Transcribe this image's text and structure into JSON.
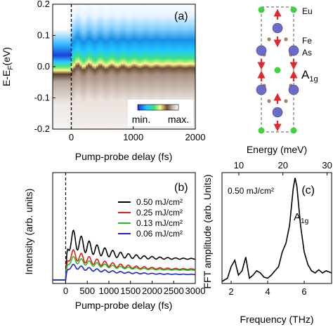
{
  "figure": {
    "panels": [
      {
        "id": "a",
        "label": "(a)",
        "type": "heatmap",
        "ylabel_parts": [
          "E-E",
          "F",
          "(eV)"
        ],
        "xlabel": "Pump-probe delay (fs)",
        "xlim": [
          -300,
          2000
        ],
        "ylim": [
          -0.2,
          0.2
        ],
        "xticks": [
          0,
          1000,
          2000
        ],
        "yticks": [
          0.2,
          0.1,
          0.0,
          -0.1,
          -0.2
        ],
        "ytick_labels": [
          "0.2",
          "0.1",
          "0.0",
          "-0.1",
          "-0.2"
        ],
        "colorbar": {
          "min_label": "min.",
          "max_label": "max.",
          "colors": [
            "#1a30d6",
            "#21c9ff",
            "#3fe07f",
            "#fff48a",
            "#6b4d3b",
            "#ffffff"
          ]
        },
        "dashed_line_x": 0
      },
      {
        "id": "b",
        "label": "(b)",
        "type": "line",
        "ylabel": "Intensity (arb. units)",
        "xlabel": "Pump-probe delay (fs)",
        "xlim": [
          -300,
          3000
        ],
        "xticks": [
          0,
          500,
          1000,
          1500,
          2000,
          2500,
          3000
        ],
        "unit": "mJ/cm²",
        "dashed_line_x": 0
      },
      {
        "id": "c",
        "label": "(c)",
        "type": "line",
        "ylabel": "FFT amplitude (arb. Units)",
        "xlabel": "Frequency (THz)",
        "top_xlabel": "Energy (meV)",
        "xlim": [
          1.5,
          7.5
        ],
        "xticks": [
          2,
          4,
          6
        ],
        "top_xticks": [
          10,
          20,
          30
        ],
        "annotation": "0.50 mJ/cm²",
        "mode_label": [
          "A",
          "1g"
        ]
      }
    ],
    "crystal": {
      "atom_labels": [
        "Eu",
        "Fe",
        "As"
      ],
      "mode_label": [
        "A",
        "1g"
      ],
      "colors": {
        "Eu": "#3fd23f",
        "Fe": "#a7825a",
        "As": "#6a6cc8",
        "arrow": "#e0292b"
      }
    }
  },
  "chart_data": [
    {
      "type": "heatmap",
      "title": "(a)",
      "xlabel": "Pump-probe delay (fs)",
      "ylabel": "E-EF(eV)",
      "xlim": [
        -300,
        2000
      ],
      "ylim": [
        -0.2,
        0.2
      ],
      "description_values": {
        "band_center_before_pump_eV": 0.0,
        "band_center_after_pump_eV": 0.02,
        "oscillation_frequency_THz": 5.5
      }
    },
    {
      "type": "line",
      "title": "(b)",
      "xlabel": "Pump-probe delay (fs)",
      "ylabel": "Intensity (arb. units)",
      "xlim": [
        -300,
        3000
      ],
      "ylim": [
        0,
        1
      ],
      "legend_position": "top-right",
      "series": [
        {
          "name": "0.50 mJ/cm²",
          "color": "#000000",
          "rise": 0.45,
          "baseline": 0.02,
          "level": 0.2,
          "decay_fs": 700,
          "amp": 0.11,
          "osc_decay_fs": 900
        },
        {
          "name": "0.25 mJ/cm²",
          "color": "#e41a1c",
          "rise": 0.28,
          "baseline": 0.02,
          "level": 0.1,
          "decay_fs": 800,
          "amp": 0.06,
          "osc_decay_fs": 1000
        },
        {
          "name": "0.13 mJ/cm²",
          "color": "#22c022",
          "rise": 0.22,
          "baseline": 0.02,
          "level": 0.09,
          "decay_fs": 900,
          "amp": 0.04,
          "osc_decay_fs": 1000
        },
        {
          "name": "0.06 mJ/cm²",
          "color": "#2020d0",
          "rise": 0.15,
          "baseline": 0.02,
          "level": 0.05,
          "decay_fs": 900,
          "amp": 0.025,
          "osc_decay_fs": 1100
        }
      ],
      "oscillation_frequency_THz": 5.5
    },
    {
      "type": "line",
      "title": "(c)",
      "xlabel": "Frequency (THz)",
      "ylabel": "FFT amplitude (arb. Units)",
      "xlim": [
        1.5,
        7.5
      ],
      "ylim": [
        0,
        1.05
      ],
      "x": [
        1.5,
        1.8,
        2.0,
        2.2,
        2.4,
        2.6,
        2.8,
        3.0,
        3.2,
        3.4,
        3.6,
        3.8,
        4.0,
        4.2,
        4.4,
        4.6,
        4.8,
        5.0,
        5.2,
        5.4,
        5.5,
        5.6,
        5.8,
        6.0,
        6.2,
        6.4,
        6.6,
        6.8,
        7.0,
        7.2,
        7.5
      ],
      "y": [
        0.02,
        0.05,
        0.16,
        0.22,
        0.08,
        0.12,
        0.25,
        0.05,
        0.08,
        0.12,
        0.1,
        0.06,
        0.05,
        0.08,
        0.12,
        0.16,
        0.3,
        0.38,
        0.55,
        0.9,
        1.0,
        0.92,
        0.55,
        0.3,
        0.18,
        0.12,
        0.1,
        0.13,
        0.1,
        0.12,
        0.1
      ],
      "series": [
        {
          "name": "0.50 mJ/cm²",
          "color": "#000000"
        }
      ]
    }
  ]
}
